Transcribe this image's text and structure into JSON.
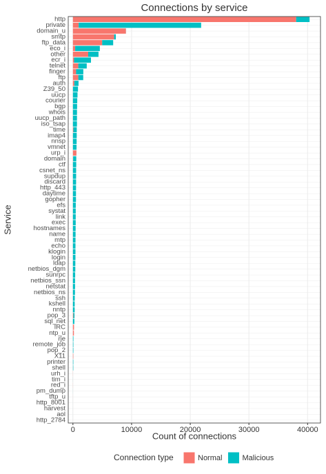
{
  "chart_data": {
    "type": "bar",
    "orientation": "horizontal",
    "stacked": true,
    "title": "Connections by service",
    "x_label": "Count of connections",
    "y_label": "Service",
    "legend_title": "Connection type",
    "legend_position": "bottom",
    "grid": true,
    "categories": [
      "http",
      "private",
      "domain_u",
      "smtp",
      "ftp_data",
      "eco_i",
      "other",
      "ecr_i",
      "telnet",
      "finger",
      "ftp",
      "auth",
      "Z39_50",
      "uucp",
      "courier",
      "bgp",
      "whois",
      "uucp_path",
      "iso_tsap",
      "time",
      "imap4",
      "nnsp",
      "vmnet",
      "urp_i",
      "domain",
      "ctf",
      "csnet_ns",
      "supdup",
      "discard",
      "http_443",
      "daytime",
      "gopher",
      "efs",
      "systat",
      "link",
      "exec",
      "hostnames",
      "name",
      "mtp",
      "echo",
      "klogin",
      "login",
      "ldap",
      "netbios_dgm",
      "sunrpc",
      "netbios_ssn",
      "netstat",
      "netbios_ns",
      "ssh",
      "kshell",
      "nntp",
      "pop_3",
      "sql_net",
      "IRC",
      "ntp_u",
      "rje",
      "remote_job",
      "pop_2",
      "X11",
      "printer",
      "shell",
      "urh_i",
      "tim_i",
      "red_i",
      "pm_dump",
      "tftp_u",
      "http_8001",
      "harvest",
      "aol",
      "http_2784"
    ],
    "series": [
      {
        "name": "Normal",
        "color": "#F8766D",
        "values": [
          38049,
          982,
          9034,
          7029,
          4984,
          384,
          2604,
          190,
          917,
          545,
          918,
          236,
          0,
          0,
          0,
          0,
          0,
          0,
          0,
          76,
          3,
          0,
          0,
          599,
          38,
          0,
          0,
          0,
          0,
          0,
          0,
          0,
          0,
          0,
          0,
          0,
          0,
          0,
          0,
          0,
          0,
          0,
          0,
          0,
          0,
          0,
          0,
          0,
          5,
          0,
          0,
          79,
          0,
          186,
          168,
          0,
          0,
          0,
          67,
          0,
          4,
          10,
          3,
          8,
          0,
          3,
          0,
          0,
          0,
          0
        ]
      },
      {
        "name": "Malicious",
        "color": "#00BFC4",
        "values": [
          2289,
          20871,
          9,
          284,
          1876,
          4202,
          1755,
          2887,
          1436,
          1222,
          836,
          719,
          862,
          780,
          734,
          710,
          693,
          689,
          687,
          578,
          644,
          630,
          617,
          3,
          531,
          563,
          545,
          544,
          538,
          530,
          521,
          518,
          485,
          477,
          475,
          474,
          460,
          451,
          439,
          434,
          433,
          429,
          410,
          405,
          381,
          362,
          360,
          347,
          306,
          299,
          296,
          185,
          245,
          1,
          0,
          86,
          78,
          78,
          6,
          69,
          61,
          0,
          5,
          0,
          5,
          0,
          2,
          2,
          2,
          1
        ]
      }
    ],
    "xlim": [
      -800,
      42200
    ],
    "xticks": [
      0,
      10000,
      20000,
      30000,
      40000
    ]
  }
}
